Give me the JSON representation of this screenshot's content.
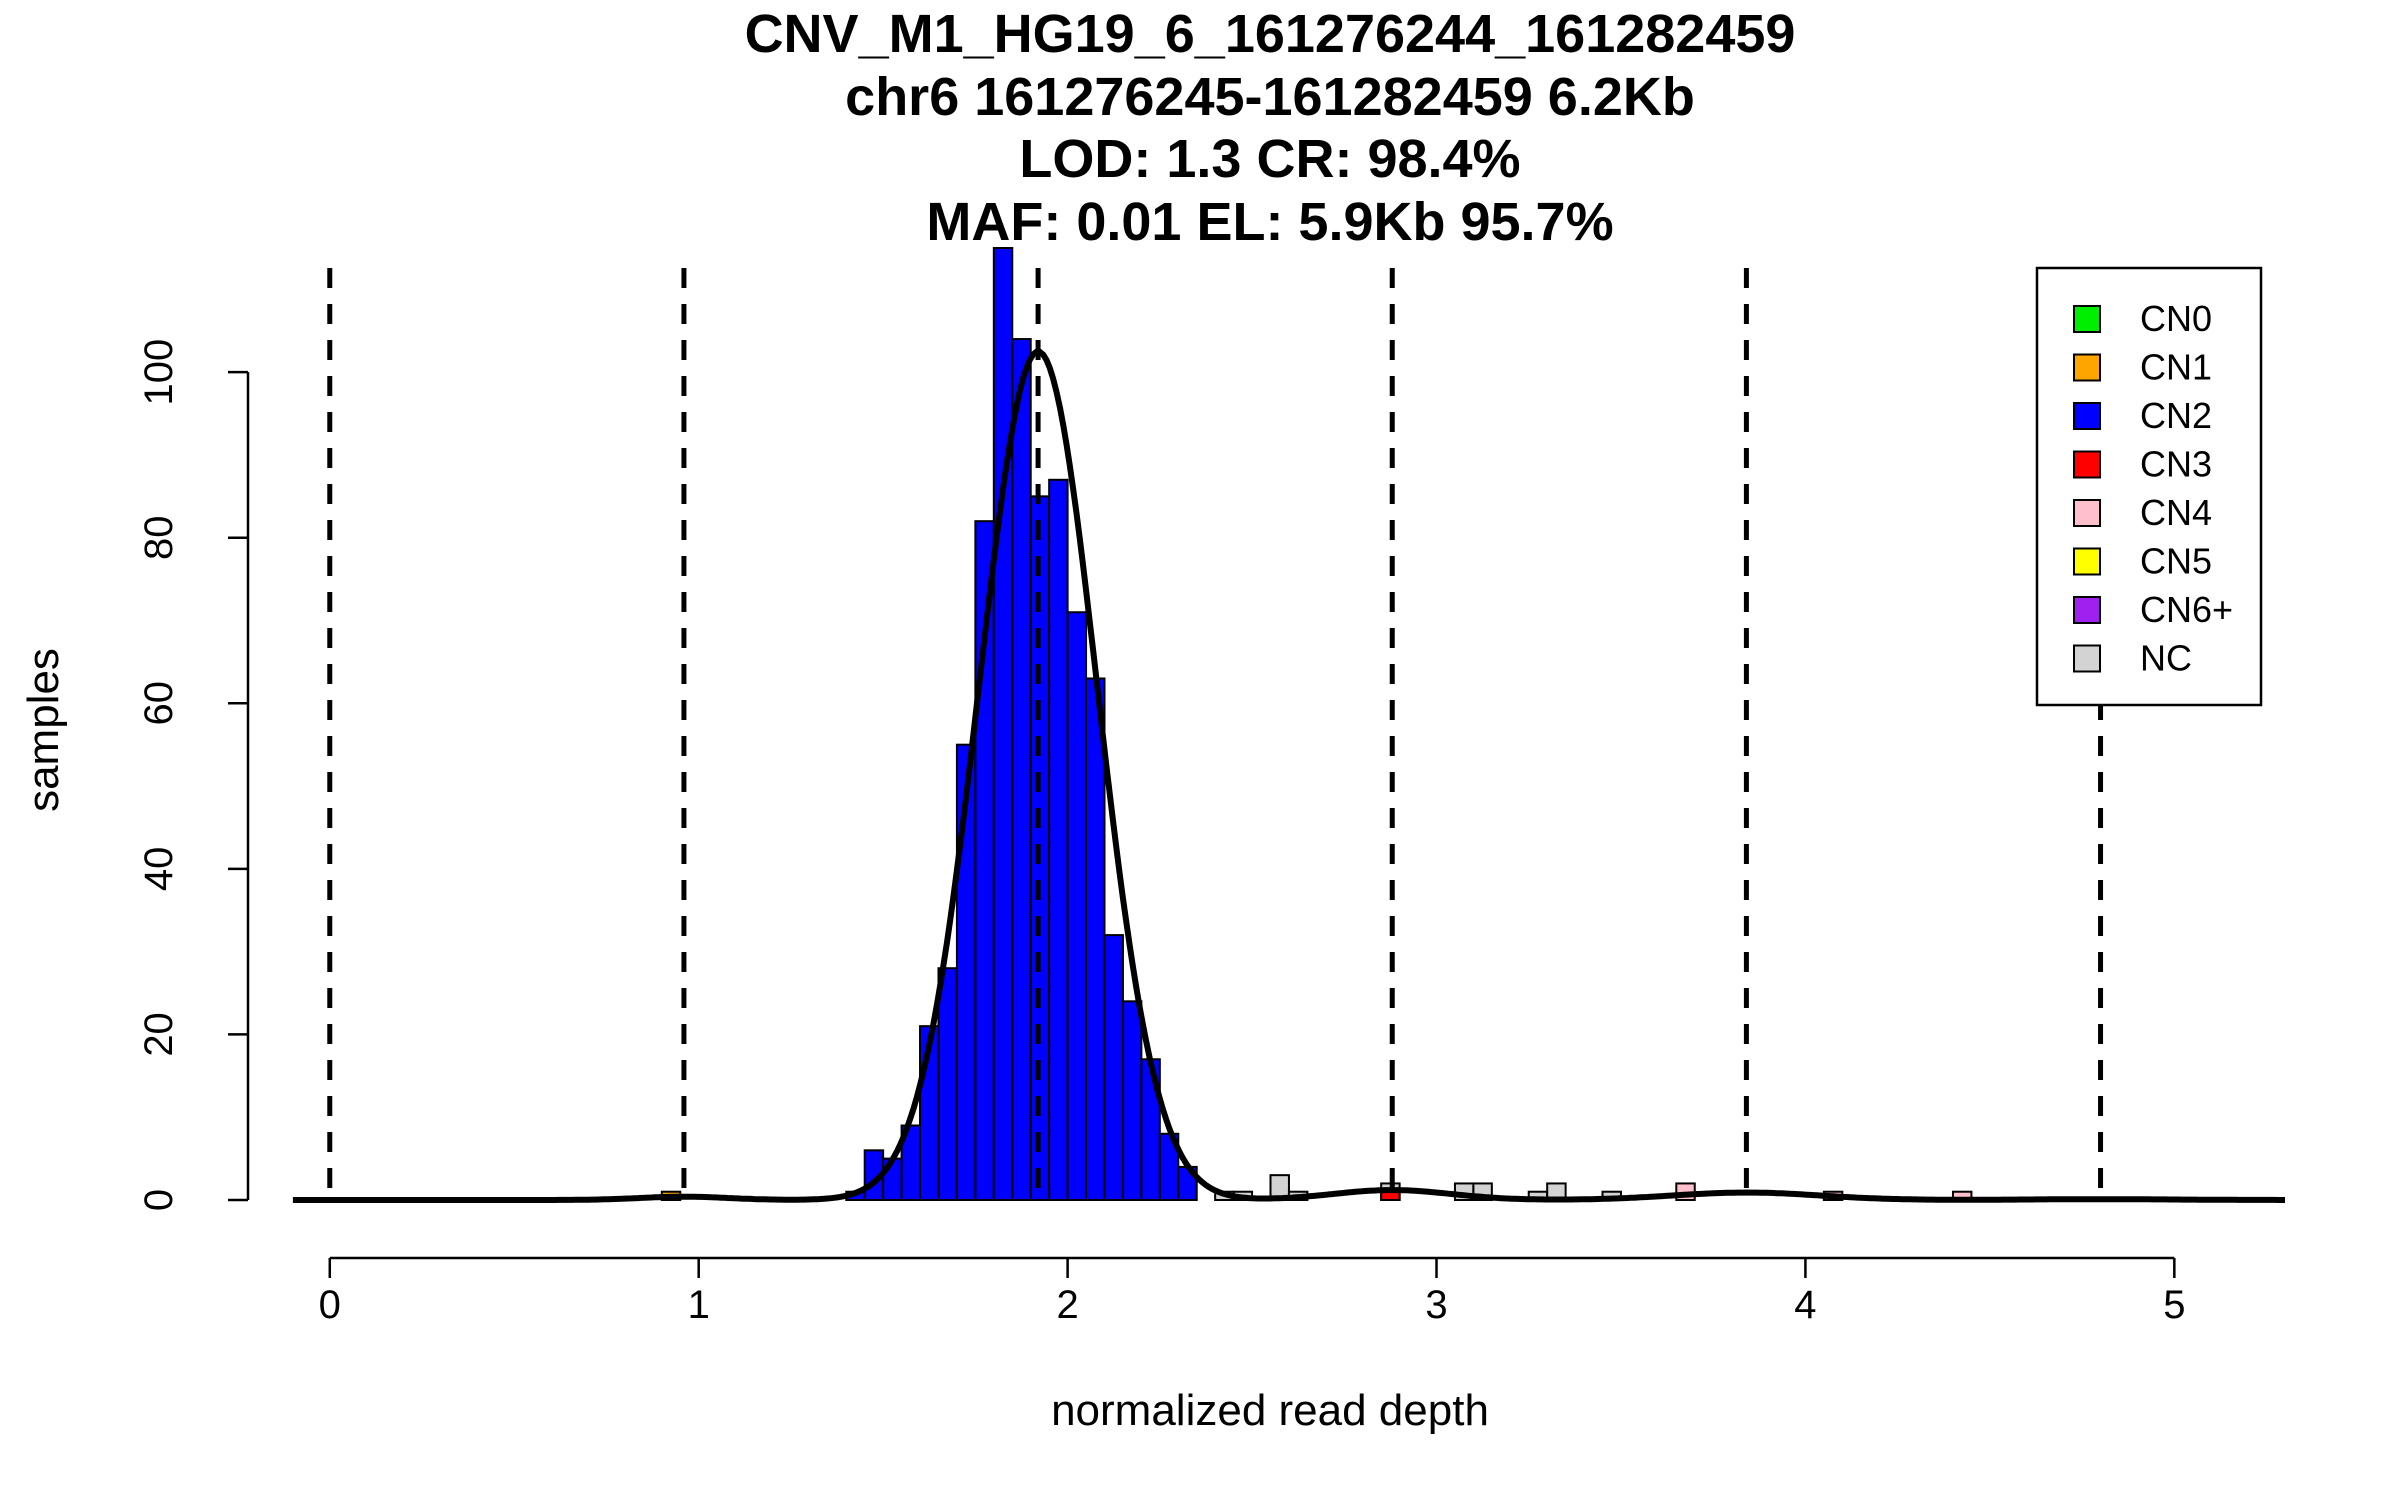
{
  "chart_data": {
    "type": "bar",
    "title_lines": [
      "CNV_M1_HG19_6_161276244_161282459",
      "chr6 161276245-161282459 6.2Kb",
      "LOD: 1.3 CR: 98.4%",
      "MAF: 0.01 EL: 5.9Kb 95.7%"
    ],
    "xlabel": "normalized read depth",
    "ylabel": "samples",
    "xlim": [
      -0.2,
      5.3
    ],
    "ylim": [
      0,
      115
    ],
    "x_ticks": [
      "0",
      "1",
      "2",
      "3",
      "4",
      "5"
    ],
    "y_ticks": [
      "0",
      "20",
      "40",
      "60",
      "80",
      "100"
    ],
    "bin_width": 0.05,
    "bars": [
      {
        "x": 0.9,
        "count": 1,
        "class": "CN1"
      },
      {
        "x": 1.4,
        "count": 1,
        "class": "CN2"
      },
      {
        "x": 1.45,
        "count": 6,
        "class": "CN2"
      },
      {
        "x": 1.5,
        "count": 5,
        "class": "CN2"
      },
      {
        "x": 1.55,
        "count": 9,
        "class": "CN2"
      },
      {
        "x": 1.6,
        "count": 21,
        "class": "CN2"
      },
      {
        "x": 1.65,
        "count": 28,
        "class": "CN2"
      },
      {
        "x": 1.7,
        "count": 55,
        "class": "CN2"
      },
      {
        "x": 1.75,
        "count": 82,
        "class": "CN2"
      },
      {
        "x": 1.8,
        "count": 115,
        "class": "CN2"
      },
      {
        "x": 1.85,
        "count": 104,
        "class": "CN2"
      },
      {
        "x": 1.9,
        "count": 85,
        "class": "CN2"
      },
      {
        "x": 1.95,
        "count": 87,
        "class": "CN2"
      },
      {
        "x": 2.0,
        "count": 71,
        "class": "CN2"
      },
      {
        "x": 2.05,
        "count": 63,
        "class": "CN2"
      },
      {
        "x": 2.1,
        "count": 32,
        "class": "CN2"
      },
      {
        "x": 2.15,
        "count": 24,
        "class": "CN2"
      },
      {
        "x": 2.2,
        "count": 17,
        "class": "CN2"
      },
      {
        "x": 2.25,
        "count": 8,
        "class": "CN2"
      },
      {
        "x": 2.3,
        "count": 4,
        "class": "CN2"
      },
      {
        "x": 2.4,
        "count": 1,
        "class": "NC"
      },
      {
        "x": 2.45,
        "count": 1,
        "class": "NC"
      },
      {
        "x": 2.55,
        "count": 3,
        "class": "NC"
      },
      {
        "x": 2.6,
        "count": 1,
        "class": "NC"
      },
      {
        "x": 2.85,
        "count": 2,
        "class": "NC"
      },
      {
        "x": 2.85,
        "count": 1,
        "class": "CN3"
      },
      {
        "x": 3.05,
        "count": 2,
        "class": "NC"
      },
      {
        "x": 3.1,
        "count": 2,
        "class": "NC"
      },
      {
        "x": 3.25,
        "count": 1,
        "class": "NC"
      },
      {
        "x": 3.3,
        "count": 2,
        "class": "NC"
      },
      {
        "x": 3.45,
        "count": 1,
        "class": "NC"
      },
      {
        "x": 3.65,
        "count": 2,
        "class": "CN4"
      },
      {
        "x": 4.05,
        "count": 1,
        "class": "CN4"
      },
      {
        "x": 4.4,
        "count": 1,
        "class": "CN4"
      }
    ],
    "fit_components": [
      {
        "mean": 0.96,
        "sd": 0.12,
        "peak": 0.4
      },
      {
        "mean": 1.92,
        "sd": 0.16,
        "peak": 102.5
      },
      {
        "mean": 2.88,
        "sd": 0.16,
        "peak": 1.2
      },
      {
        "mean": 3.84,
        "sd": 0.2,
        "peak": 0.9
      },
      {
        "mean": 4.8,
        "sd": 0.2,
        "peak": 0.1
      }
    ],
    "thresholds": [
      0.0,
      0.96,
      1.92,
      2.88,
      3.84,
      4.8
    ],
    "legend": {
      "placement": "top-right",
      "entries": [
        {
          "label": "CN0",
          "color": "#00ee00"
        },
        {
          "label": "CN1",
          "color": "#ffa500"
        },
        {
          "label": "CN2",
          "color": "#0000ff"
        },
        {
          "label": "CN3",
          "color": "#ff0000"
        },
        {
          "label": "CN4",
          "color": "#ffc0cb"
        },
        {
          "label": "CN5",
          "color": "#ffff00"
        },
        {
          "label": "CN6+",
          "color": "#a020f0"
        },
        {
          "label": "NC",
          "color": "#d3d3d3"
        }
      ]
    }
  }
}
